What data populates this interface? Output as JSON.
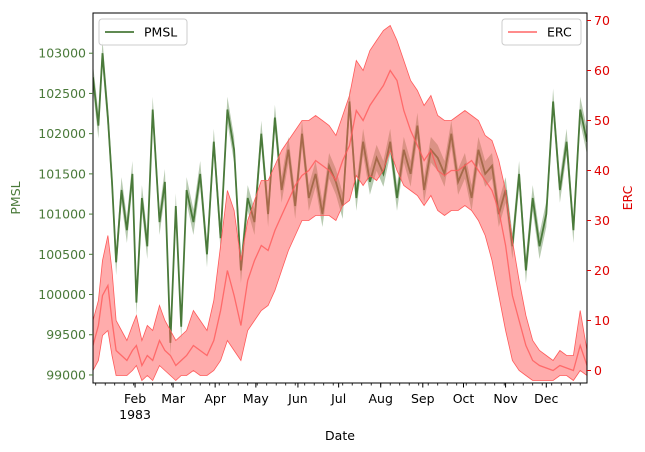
{
  "chart_data": {
    "type": "line",
    "title": "",
    "xlabel": "Date",
    "x_ticks": {
      "months": [
        "Feb",
        "Mar",
        "Apr",
        "May",
        "Jun",
        "Jul",
        "Aug",
        "Sep",
        "Oct",
        "Nov",
        "Dec"
      ],
      "year_label": "1983"
    },
    "xlim_days": [
      1,
      365
    ],
    "left_axis": {
      "label": "PMSL",
      "color": "#4a7a3a",
      "ylim": [
        98900,
        103500
      ],
      "ticks": [
        99000,
        99500,
        100000,
        100500,
        101000,
        101500,
        102000,
        102500,
        103000
      ]
    },
    "right_axis": {
      "label": "ERC",
      "color": "#e00000",
      "ylim": [
        -2.5,
        71.5
      ],
      "ticks": [
        0,
        10,
        20,
        30,
        40,
        50,
        60,
        70
      ]
    },
    "series": [
      {
        "name": "PMSL",
        "axis": "left",
        "color": "#4a7a3a",
        "band_spread": 160,
        "day": [
          1,
          5,
          8,
          12,
          15,
          18,
          22,
          26,
          30,
          33,
          37,
          41,
          45,
          50,
          54,
          58,
          62,
          66,
          70,
          75,
          80,
          85,
          90,
          95,
          100,
          105,
          110,
          115,
          120,
          125,
          130,
          135,
          140,
          145,
          150,
          155,
          160,
          165,
          170,
          175,
          180,
          185,
          190,
          195,
          200,
          205,
          210,
          215,
          220,
          225,
          230,
          235,
          240,
          245,
          250,
          255,
          260,
          265,
          270,
          275,
          280,
          285,
          290,
          295,
          300,
          305,
          310,
          315,
          320,
          325,
          330,
          335,
          340,
          345,
          350,
          355,
          360,
          365
        ],
        "values": [
          102700,
          102100,
          103000,
          102200,
          101400,
          100400,
          101300,
          100800,
          101500,
          99900,
          101200,
          100600,
          102300,
          100900,
          101400,
          99400,
          101100,
          99600,
          101300,
          100900,
          101500,
          100500,
          101900,
          100700,
          102300,
          101800,
          100300,
          101200,
          100900,
          102000,
          101000,
          102200,
          101300,
          101800,
          101100,
          102000,
          101200,
          101500,
          101000,
          101600,
          101400,
          101100,
          102400,
          101200,
          101900,
          101400,
          101700,
          101500,
          101900,
          101200,
          101800,
          101500,
          102100,
          101300,
          101800,
          101700,
          101500,
          102000,
          101400,
          101600,
          101200,
          101800,
          101500,
          101600,
          101000,
          101300,
          100600,
          101500,
          100300,
          101200,
          100600,
          101000,
          102400,
          101300,
          101900,
          100800,
          102300,
          101900
        ]
      },
      {
        "name": "ERC",
        "axis": "right",
        "color": "#ff5a5a",
        "day": [
          1,
          5,
          8,
          12,
          15,
          18,
          22,
          26,
          30,
          33,
          37,
          41,
          45,
          50,
          54,
          58,
          62,
          66,
          70,
          75,
          80,
          85,
          90,
          95,
          100,
          105,
          110,
          115,
          120,
          125,
          130,
          135,
          140,
          145,
          150,
          155,
          160,
          165,
          170,
          175,
          180,
          185,
          190,
          195,
          200,
          205,
          210,
          215,
          220,
          225,
          230,
          235,
          240,
          245,
          250,
          255,
          260,
          265,
          270,
          275,
          280,
          285,
          290,
          295,
          300,
          305,
          310,
          315,
          320,
          325,
          330,
          335,
          340,
          345,
          350,
          355,
          360,
          365
        ],
        "mean": [
          5,
          9,
          15,
          17,
          10,
          4,
          3,
          2,
          4,
          5,
          1,
          3,
          2,
          6,
          4,
          3,
          1,
          2,
          3,
          5,
          4,
          3,
          6,
          12,
          20,
          15,
          9,
          18,
          22,
          25,
          24,
          28,
          31,
          34,
          37,
          39,
          40,
          42,
          41,
          40,
          38,
          42,
          45,
          52,
          50,
          53,
          55,
          57,
          60,
          58,
          52,
          48,
          45,
          42,
          44,
          40,
          39,
          40,
          40,
          41,
          42,
          40,
          38,
          36,
          32,
          25,
          15,
          10,
          5,
          2,
          1,
          0.5,
          0,
          1,
          0.5,
          0,
          5,
          1
        ],
        "lower": [
          0,
          2,
          7,
          8,
          3,
          -1,
          -1,
          -1,
          0,
          1,
          -2,
          -1,
          -2,
          1,
          0,
          -1,
          -2,
          -1,
          -1,
          0,
          -1,
          -1,
          0,
          2,
          6,
          4,
          2,
          8,
          10,
          12,
          13,
          16,
          20,
          24,
          27,
          30,
          30,
          31,
          31,
          31,
          30,
          33,
          34,
          39,
          37,
          39,
          38,
          40,
          44,
          40,
          37,
          36,
          35,
          33,
          35,
          32,
          31,
          32,
          32,
          33,
          32,
          30,
          27,
          22,
          15,
          8,
          2,
          0,
          -1,
          -2,
          -2,
          -2,
          -2,
          -1,
          -1,
          -2,
          0,
          -1
        ],
        "upper": [
          10,
          14,
          22,
          27,
          20,
          10,
          8,
          6,
          9,
          11,
          6,
          9,
          8,
          13,
          10,
          8,
          6,
          7,
          8,
          12,
          10,
          8,
          14,
          25,
          36,
          32,
          22,
          30,
          34,
          38,
          38,
          41,
          44,
          46,
          48,
          50,
          50,
          51,
          50,
          49,
          47,
          51,
          55,
          62,
          60,
          64,
          66,
          68,
          69,
          66,
          62,
          58,
          56,
          53,
          55,
          51,
          50,
          50,
          51,
          52,
          51,
          50,
          47,
          46,
          42,
          36,
          26,
          18,
          11,
          6,
          4,
          3,
          2,
          4,
          3,
          3,
          12,
          4
        ]
      }
    ],
    "legend": [
      {
        "label": "PMSL",
        "position": "upper-left"
      },
      {
        "label": "ERC",
        "position": "upper-right"
      }
    ]
  }
}
